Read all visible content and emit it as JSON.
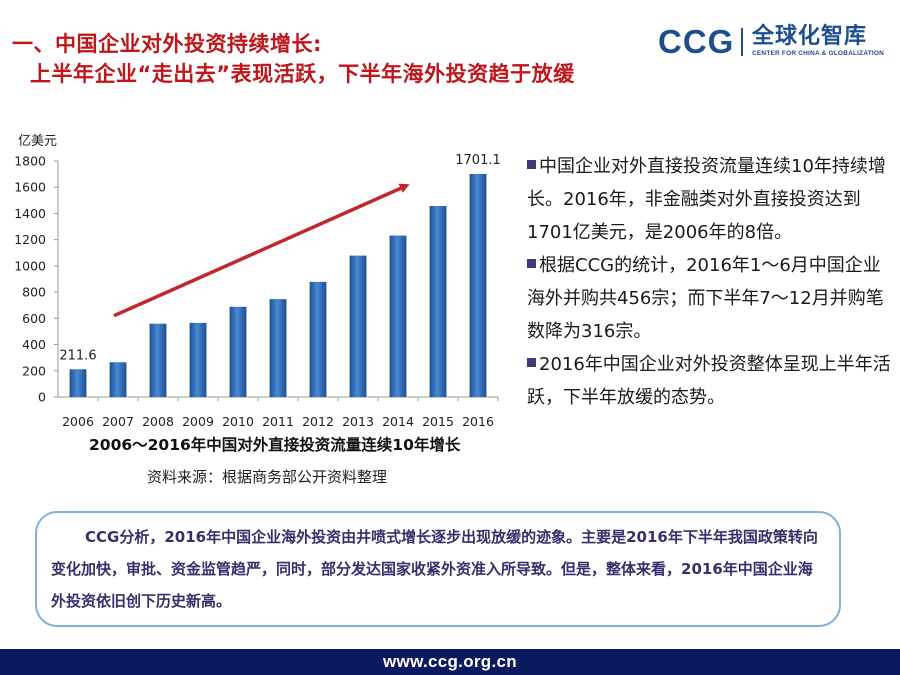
{
  "header": {
    "title_line1": "一、中国企业对外投资持续增长:",
    "title_line2": "上半年企业“走出去”表现活跃，下半年海外投资趋于放缓"
  },
  "logo": {
    "ccg": "CCG",
    "cn": "全球化智库",
    "en": "CENTER FOR CHINA & GLOBALIZATION"
  },
  "chart_data": {
    "type": "bar",
    "title": "2006～2016年中国对外直接投资流量连续10年增长",
    "ylabel": "亿美元",
    "xlabel": "",
    "categories": [
      "2006",
      "2007",
      "2008",
      "2009",
      "2010",
      "2011",
      "2012",
      "2013",
      "2014",
      "2015",
      "2016"
    ],
    "values": [
      211.6,
      265.1,
      559.1,
      565.3,
      688.1,
      746.5,
      878.0,
      1078.4,
      1231.2,
      1456.7,
      1701.1
    ],
    "data_labels": {
      "2006": "211.6",
      "2016": "1701.1"
    },
    "yticks": [
      "0",
      "200",
      "400",
      "600",
      "800",
      "1000",
      "1200",
      "1400",
      "1600",
      "1800"
    ],
    "ylim": [
      0,
      1800
    ],
    "grid": false,
    "legend": "none",
    "bar_color": "#2f6db5",
    "trend_arrow_color": "#c0282d",
    "source": "资料来源：根据商务部公开资料整理"
  },
  "bullets": [
    "中国企业对外直接投资流量连续10年持续增长。2016年，非金融类对外直接投资达到1701亿美元，是2006年的8倍。",
    "根据CCG的统计，2016年1～6月中国企业海外并购共456宗；而下半年7～12月并购笔数降为316宗。",
    "2016年中国企业对外投资整体呈现上半年活跃，下半年放缓的态势。"
  ],
  "analysis": {
    "text": "CCG分析，2016年中国企业海外投资由井喷式增长逐步出现放缓的迹象。主要是2016年下半年我国政策转向变化加快，审批、资金监管趋严，同时，部分发达国家收紧外资准入所导致。但是，整体来看，2016年中国企业海外投资依旧创下历史新高。"
  },
  "footer": {
    "url": "www.ccg.org.cn"
  },
  "colors": {
    "title_red": "#c0161b",
    "logo_blue": "#1d4e8f",
    "footer_navy": "#0b1a5e",
    "box_border": "#7fb1dc",
    "analysis_text": "#35306b"
  }
}
